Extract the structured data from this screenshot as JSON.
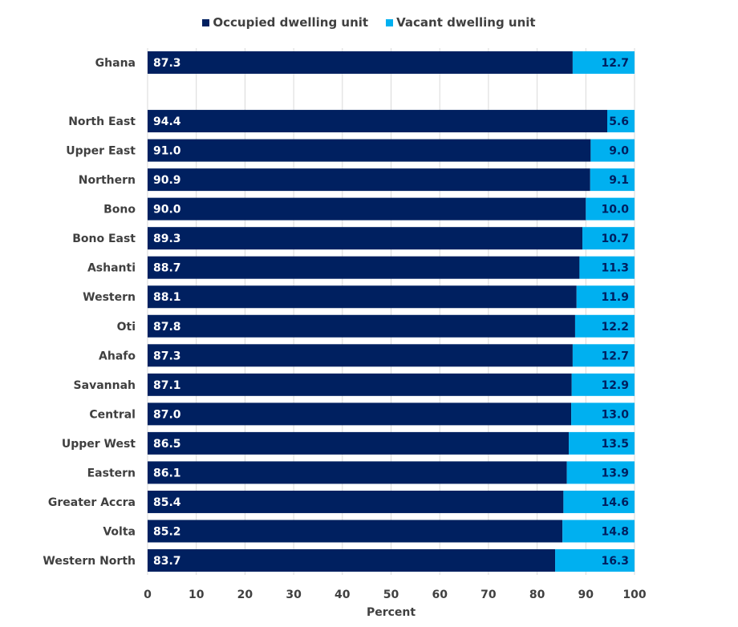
{
  "chart_data": {
    "type": "bar",
    "orientation": "horizontal",
    "stacked": true,
    "categories": [
      "Ghana",
      "",
      "North East",
      "Upper East",
      "Northern",
      "Bono",
      "Bono East",
      "Ashanti",
      "Western",
      "Oti",
      "Ahafo",
      "Savannah",
      "Central",
      "Upper West",
      "Eastern",
      "Greater Accra",
      "Volta",
      "Western North"
    ],
    "series": [
      {
        "name": "Occupied dwelling unit",
        "color": "#002060",
        "values": [
          87.3,
          null,
          94.4,
          91.0,
          90.9,
          90.0,
          89.3,
          88.7,
          88.1,
          87.8,
          87.3,
          87.1,
          87.0,
          86.5,
          86.1,
          85.4,
          85.2,
          83.7
        ]
      },
      {
        "name": "Vacant dwelling unit",
        "color": "#00B0F0",
        "values": [
          12.7,
          null,
          5.6,
          9.0,
          9.1,
          10.0,
          10.7,
          11.3,
          11.9,
          12.2,
          12.7,
          12.9,
          13.0,
          13.5,
          13.9,
          14.6,
          14.8,
          16.3
        ]
      }
    ],
    "xlabel": "Percent",
    "ylabel": "",
    "xlim": [
      0,
      100
    ],
    "xticks": [
      "0",
      "10",
      "20",
      "30",
      "40",
      "50",
      "60",
      "70",
      "80",
      "90",
      "100"
    ],
    "grid": "vertical",
    "legend": "top",
    "data_labels": true
  }
}
